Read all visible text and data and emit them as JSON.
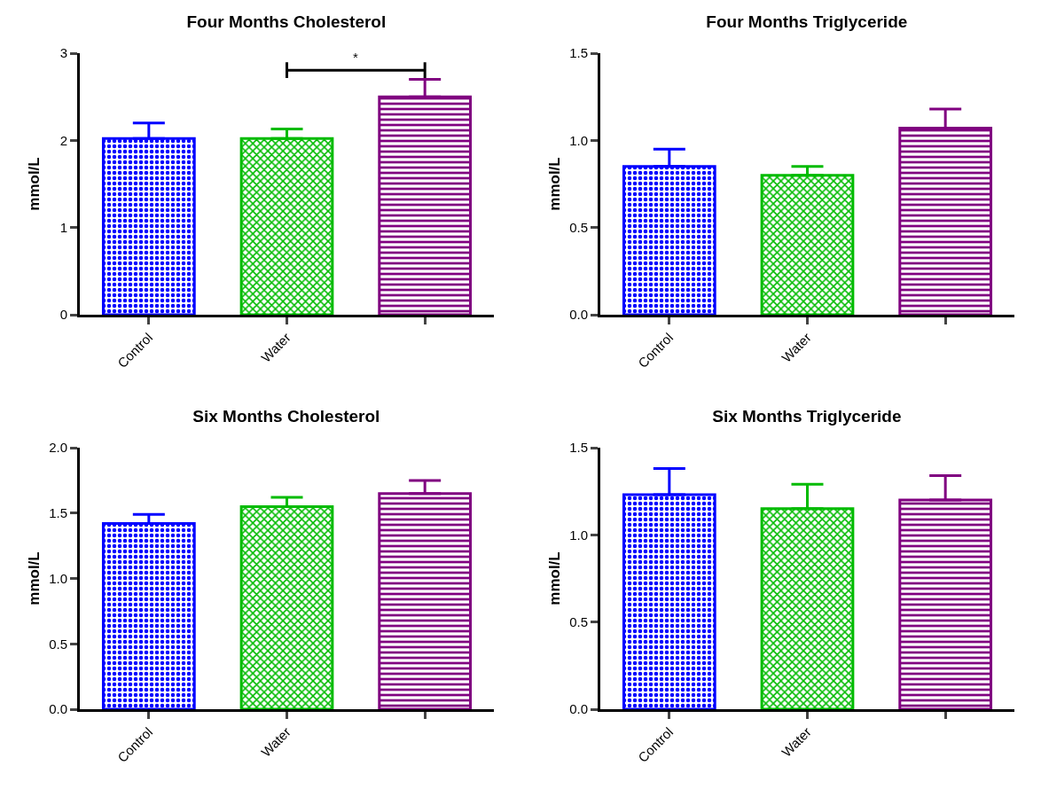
{
  "chart_data": [
    {
      "type": "bar",
      "title": "Four Months Cholesterol",
      "ylabel": "mmol/L",
      "categories": [
        "Control",
        "Water",
        null
      ],
      "values": [
        2.02,
        2.02,
        2.5
      ],
      "colors": [
        "#0000ff",
        "#00bb00",
        "#800080"
      ],
      "errors": [
        [
          2.02,
          2.2
        ],
        [
          2.02,
          2.13
        ],
        [
          2.5,
          2.7
        ]
      ],
      "ylim": [
        0,
        3
      ],
      "yticks": [
        0,
        1,
        2,
        3
      ],
      "grid": false,
      "annotations": [
        "*"
      ]
    },
    {
      "type": "bar",
      "title": "Four Months Triglyceride",
      "ylabel": "mmol/L",
      "categories": [
        "Control",
        "Water",
        null
      ],
      "values": [
        0.85,
        0.8,
        1.07
      ],
      "colors": [
        "#0000ff",
        "#00bb00",
        "#800080"
      ],
      "errors": [
        [
          0.85,
          0.95
        ],
        [
          0.8,
          0.85
        ],
        [
          1.07,
          1.18
        ]
      ],
      "ylim": [
        0,
        1.5
      ],
      "yticks": [
        {
          "value": 0,
          "label": "0.0"
        },
        {
          "value": 0.5,
          "label": "0.5"
        },
        {
          "value": 1,
          "label": "1.0"
        },
        {
          "value": 1.5,
          "label": "1.5"
        }
      ],
      "grid": false
    },
    {
      "type": "bar",
      "title": "Six Months Cholesterol",
      "ylabel": "mmol/L",
      "categories": [
        "Control",
        "Water",
        null
      ],
      "values": [
        1.42,
        1.55,
        1.65
      ],
      "colors": [
        "#0000ff",
        "#00bb00",
        "#800080"
      ],
      "errors": [
        [
          1.42,
          1.49
        ],
        [
          1.55,
          1.62
        ],
        [
          1.65,
          1.75
        ]
      ],
      "ylim": [
        0,
        2
      ],
      "yticks": [
        {
          "value": 0,
          "label": "0.0"
        },
        {
          "value": 0.5,
          "label": "0.5"
        },
        {
          "value": 1,
          "label": "1.0"
        },
        {
          "value": 1.5,
          "label": "1.5"
        },
        {
          "value": 2,
          "label": "2.0"
        }
      ],
      "grid": false
    },
    {
      "type": "bar",
      "title": "Six Months Triglyceride",
      "ylabel": "mmol/L",
      "categories": [
        "Control",
        "Water",
        null
      ],
      "values": [
        1.23,
        1.15,
        1.2
      ],
      "colors": [
        "#0000ff",
        "#00bb00",
        "#800080"
      ],
      "errors": [
        [
          1.23,
          1.38
        ],
        [
          1.15,
          1.29
        ],
        [
          1.2,
          1.34
        ]
      ],
      "ylim": [
        0,
        1.5
      ],
      "yticks": [
        {
          "value": 0,
          "label": "0.0"
        },
        {
          "value": 0.5,
          "label": "0.5"
        },
        {
          "value": 1,
          "label": "1.0"
        },
        {
          "value": 1.5,
          "label": "1.5"
        }
      ],
      "grid": false
    }
  ]
}
